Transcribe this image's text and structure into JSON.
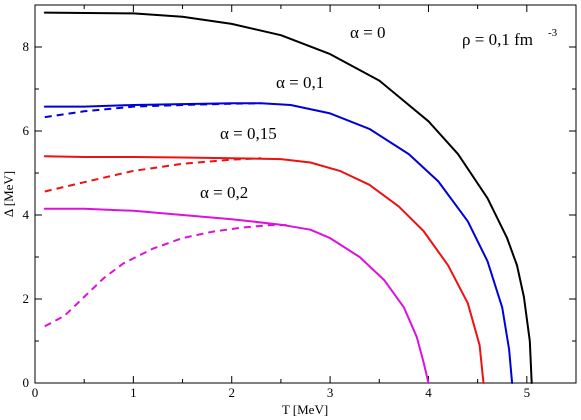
{
  "chart_data": {
    "type": "line",
    "title": "",
    "xlabel": "T [MeV]",
    "ylabel": "Δ [MeV]",
    "xlim": [
      0,
      5.5
    ],
    "ylim": [
      0,
      9
    ],
    "xticks": [
      0,
      1,
      2,
      3,
      4,
      5
    ],
    "yticks": [
      0,
      2,
      4,
      6,
      8
    ],
    "grid": false,
    "annotations": {
      "density_main": "ρ = 0,1 fm",
      "density_exp": "-3",
      "alpha_labels": [
        "α  = 0",
        "α  = 0,1",
        "α  = 0,15",
        "α  = 0,2"
      ]
    },
    "series": [
      {
        "color": "#000000",
        "style": "solid",
        "x": [
          0.1,
          1.0,
          1.5,
          2.0,
          2.5,
          3.0,
          3.5,
          4.0,
          4.3,
          4.6,
          4.8,
          4.9,
          4.97,
          5.03,
          5.05
        ],
        "y": [
          8.82,
          8.8,
          8.72,
          8.55,
          8.28,
          7.83,
          7.2,
          6.23,
          5.45,
          4.4,
          3.45,
          2.8,
          2.05,
          1.0,
          0.0
        ]
      },
      {
        "color": "#0000dd",
        "style": "solid",
        "x": [
          0.1,
          0.5,
          1.0,
          1.5,
          2.0,
          2.3,
          2.6,
          3.0,
          3.4,
          3.8,
          4.1,
          4.4,
          4.6,
          4.75,
          4.82,
          4.85
        ],
        "y": [
          6.58,
          6.58,
          6.62,
          6.64,
          6.66,
          6.66,
          6.62,
          6.42,
          6.05,
          5.45,
          4.8,
          3.85,
          2.9,
          1.8,
          0.8,
          0.0
        ]
      },
      {
        "color": "#0000dd",
        "style": "dashed",
        "x": [
          0.1,
          0.5,
          1.0,
          1.5,
          2.0,
          2.3
        ],
        "y": [
          6.33,
          6.47,
          6.58,
          6.62,
          6.65,
          6.66
        ]
      },
      {
        "color": "#ee1111",
        "style": "solid",
        "x": [
          0.1,
          0.5,
          1.0,
          1.5,
          2.0,
          2.5,
          2.8,
          3.1,
          3.4,
          3.7,
          3.95,
          4.2,
          4.4,
          4.52,
          4.56
        ],
        "y": [
          5.4,
          5.38,
          5.38,
          5.37,
          5.35,
          5.33,
          5.25,
          5.05,
          4.72,
          4.2,
          3.62,
          2.8,
          1.9,
          0.9,
          0.0
        ]
      },
      {
        "color": "#ee1111",
        "style": "dashed",
        "x": [
          0.1,
          0.5,
          1.0,
          1.5,
          2.0,
          2.3
        ],
        "y": [
          4.56,
          4.78,
          5.05,
          5.22,
          5.32,
          5.35
        ]
      },
      {
        "color": "#dd11dd",
        "style": "solid",
        "x": [
          0.1,
          0.5,
          1.0,
          1.5,
          2.0,
          2.5,
          2.8,
          3.0,
          3.3,
          3.55,
          3.75,
          3.88,
          3.95,
          4.0
        ],
        "y": [
          4.15,
          4.15,
          4.1,
          4.0,
          3.9,
          3.77,
          3.65,
          3.45,
          3.0,
          2.45,
          1.8,
          1.1,
          0.5,
          0.0
        ]
      },
      {
        "color": "#dd11dd",
        "style": "dashed",
        "x": [
          0.1,
          0.3,
          0.5,
          0.7,
          0.9,
          1.2,
          1.5,
          1.8,
          2.1,
          2.4,
          2.6
        ],
        "y": [
          1.35,
          1.6,
          2.05,
          2.5,
          2.85,
          3.2,
          3.45,
          3.6,
          3.7,
          3.76,
          3.76
        ]
      }
    ]
  }
}
